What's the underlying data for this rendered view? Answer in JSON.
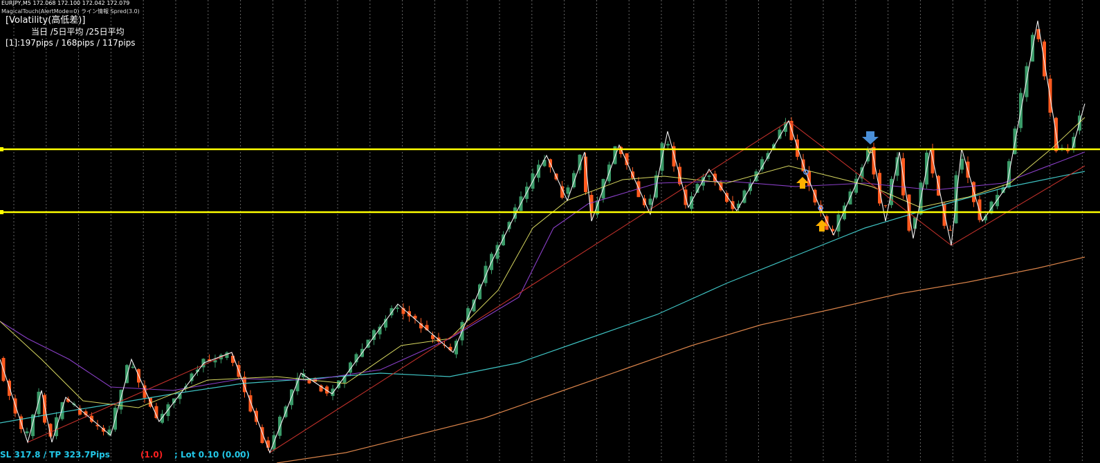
{
  "header": {
    "symbol": "EURJPY,M5  172.068 172.100 172.042 172.079",
    "indicator": "MagicalTouch(AlertMode=0) ライン情報 Spred(3.0)"
  },
  "volatility": {
    "title": "[Volatility(高低差)]",
    "heading": "当日 /5日平均 /25日平均",
    "values": "[1]:197pips / 168pips / 117pips"
  },
  "footer": {
    "sl_tp": "SL 317.8 / TP 323.7Pips",
    "ratio": "(1.0)",
    "lot": "; Lot 0.10 (0.00)"
  }
}
